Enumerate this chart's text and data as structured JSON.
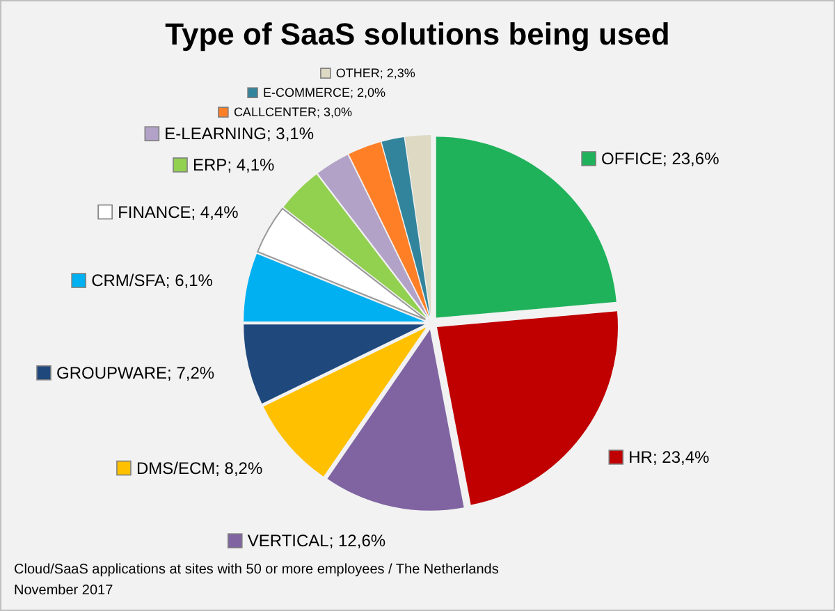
{
  "chart_data": {
    "type": "pie",
    "title": "Type of SaaS solutions being used",
    "categories": [
      "OFFICE",
      "HR",
      "VERTICAL",
      "DMS/ECM",
      "GROUPWARE",
      "CRM/SFA",
      "FINANCE",
      "ERP",
      "E-LEARNING",
      "CALLCENTER",
      "E-COMMERCE",
      "OTHER"
    ],
    "values": [
      23.6,
      23.4,
      12.6,
      8.2,
      7.2,
      6.1,
      4.4,
      4.1,
      3.1,
      3.0,
      2.0,
      2.3
    ],
    "value_labels": [
      "23,6%",
      "23,4%",
      "12,6%",
      "8,2%",
      "7,2%",
      "6,1%",
      "4,4%",
      "4,1%",
      "3,1%",
      "3,0%",
      "2,0%",
      "2,3%"
    ],
    "colors": [
      "#1fb25a",
      "#c00000",
      "#8064a2",
      "#ffc000",
      "#1f497d",
      "#00b0f0",
      "#ffffff",
      "#92d050",
      "#b3a2c7",
      "#ff7f27",
      "#31849b",
      "#ddd9c3"
    ],
    "legend": "left",
    "annotations": [
      "Cloud/SaaS applications at sites with 50 or more employees / The Netherlands",
      "November 2017"
    ]
  }
}
